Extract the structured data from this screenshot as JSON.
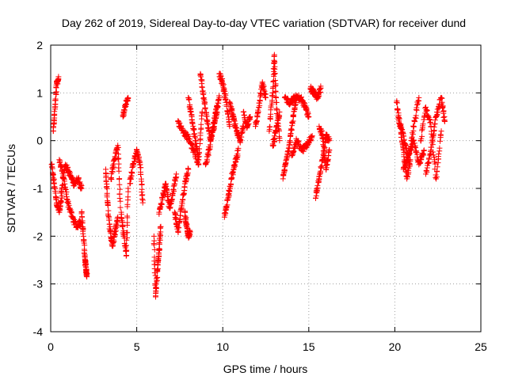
{
  "chart_data": {
    "type": "scatter",
    "title": "Day 262 of 2019, Sidereal Day-to-day VTEC variation (SDTVAR) for receiver dund",
    "xlabel": "GPS time / hours",
    "ylabel": "SDTVAR / TECUs",
    "xlim": [
      0,
      25
    ],
    "ylim": [
      -4,
      2
    ],
    "xticks": [
      0,
      5,
      10,
      15,
      20,
      25
    ],
    "yticks": [
      -4,
      -3,
      -2,
      -1,
      0,
      1,
      2
    ],
    "grid": true,
    "marker": "+",
    "color": "#ff0000",
    "series": [
      {
        "name": "SDTVAR",
        "segments": [
          {
            "x": [
              0.05,
              0.2,
              0.35,
              0.5,
              0.65
            ],
            "y": [
              -0.5,
              -0.9,
              -1.3,
              -1.5,
              -1.2
            ]
          },
          {
            "x": [
              0.15,
              0.25,
              0.35,
              0.45
            ],
            "y": [
              0.2,
              0.7,
              1.2,
              1.3
            ]
          },
          {
            "x": [
              0.5,
              0.75,
              1.0,
              1.25,
              1.5,
              1.75
            ],
            "y": [
              -0.4,
              -0.8,
              -1.3,
              -1.6,
              -1.8,
              -1.7
            ]
          },
          {
            "x": [
              0.6,
              0.85,
              1.1,
              1.35,
              1.6,
              1.8
            ],
            "y": [
              -1.1,
              -0.5,
              -0.7,
              -0.9,
              -0.8,
              -1.0
            ]
          },
          {
            "x": [
              1.8,
              1.9,
              2.0,
              2.05,
              2.1
            ],
            "y": [
              -1.5,
              -2.0,
              -2.5,
              -2.7,
              -2.85
            ]
          },
          {
            "x": [
              3.2,
              3.3,
              3.45,
              3.6,
              3.75,
              3.9
            ],
            "y": [
              -0.6,
              -1.3,
              -1.9,
              -2.2,
              -1.9,
              -1.6
            ]
          },
          {
            "x": [
              3.5,
              3.7,
              3.9,
              4.05
            ],
            "y": [
              -0.8,
              -0.4,
              -0.1,
              -1.4
            ]
          },
          {
            "x": [
              4.1,
              4.25,
              4.4,
              4.5
            ],
            "y": [
              -1.5,
              -2.0,
              -2.4,
              -1.0
            ]
          },
          {
            "x": [
              4.2,
              4.35,
              4.5
            ],
            "y": [
              0.5,
              0.75,
              0.9
            ]
          },
          {
            "x": [
              4.6,
              4.8,
              5.0,
              5.2,
              5.35
            ],
            "y": [
              -0.9,
              -0.5,
              -0.2,
              -0.5,
              -1.3
            ]
          },
          {
            "x": [
              6.0,
              6.1,
              6.2,
              6.3,
              6.4
            ],
            "y": [
              -2.0,
              -3.25,
              -2.7,
              -2.3,
              -1.8
            ]
          },
          {
            "x": [
              6.3,
              6.5,
              6.7,
              6.9,
              7.1,
              7.3
            ],
            "y": [
              -1.5,
              -1.2,
              -0.9,
              -1.4,
              -1.1,
              -0.7
            ]
          },
          {
            "x": [
              7.2,
              7.4,
              7.6,
              7.8,
              8.0
            ],
            "y": [
              -1.5,
              -1.9,
              -1.4,
              -0.9,
              -0.6
            ]
          },
          {
            "x": [
              7.4,
              7.7,
              8.0,
              8.3,
              8.6
            ],
            "y": [
              0.4,
              0.2,
              0.05,
              -0.2,
              -0.5
            ]
          },
          {
            "x": [
              7.8,
              7.9,
              8.0,
              8.1
            ],
            "y": [
              -1.5,
              -1.8,
              -2.0,
              -1.9
            ]
          },
          {
            "x": [
              8.0,
              8.2,
              8.4,
              8.6,
              8.8
            ],
            "y": [
              0.9,
              0.5,
              0.0,
              -0.4,
              0.6
            ]
          },
          {
            "x": [
              8.7,
              8.9,
              9.1,
              9.3,
              9.5,
              9.7
            ],
            "y": [
              1.4,
              0.9,
              0.4,
              0.0,
              0.3,
              0.7
            ]
          },
          {
            "x": [
              9.0,
              9.2,
              9.4,
              9.6,
              9.8
            ],
            "y": [
              -0.5,
              -0.2,
              0.2,
              0.6,
              0.9
            ]
          },
          {
            "x": [
              9.8,
              10.0,
              10.2,
              10.4
            ],
            "y": [
              1.4,
              1.2,
              0.8,
              0.3
            ]
          },
          {
            "x": [
              10.1,
              10.3,
              10.5,
              10.7,
              10.9
            ],
            "y": [
              -1.6,
              -1.2,
              -0.8,
              -0.5,
              -0.2
            ]
          },
          {
            "x": [
              10.4,
              10.6,
              10.8,
              11.0,
              11.2
            ],
            "y": [
              0.8,
              0.5,
              0.2,
              0.0,
              0.3
            ]
          },
          {
            "x": [
              11.2,
              11.4,
              11.6
            ],
            "y": [
              0.6,
              0.3,
              0.5
            ]
          },
          {
            "x": [
              11.9,
              12.1,
              12.3,
              12.5
            ],
            "y": [
              0.3,
              0.7,
              1.2,
              0.9
            ]
          },
          {
            "x": [
              12.7,
              12.9,
              13.0,
              13.1,
              13.3
            ],
            "y": [
              0.2,
              1.0,
              1.8,
              0.8,
              0.0
            ]
          },
          {
            "x": [
              12.9,
              13.1,
              13.3
            ],
            "y": [
              -0.1,
              0.2,
              0.6
            ]
          },
          {
            "x": [
              13.5,
              13.7,
              13.9,
              14.1,
              14.3
            ],
            "y": [
              -0.8,
              -0.4,
              0.0,
              0.5,
              0.9
            ]
          },
          {
            "x": [
              13.6,
              13.9,
              14.2,
              14.5,
              14.8,
              15.0
            ],
            "y": [
              0.9,
              0.8,
              0.9,
              0.9,
              0.7,
              0.5
            ]
          },
          {
            "x": [
              14.0,
              14.3,
              14.6,
              14.9,
              15.2
            ],
            "y": [
              -0.3,
              0.0,
              -0.2,
              -0.1,
              0.1
            ]
          },
          {
            "x": [
              15.1,
              15.3,
              15.5,
              15.7
            ],
            "y": [
              1.1,
              1.0,
              0.9,
              1.1
            ]
          },
          {
            "x": [
              15.4,
              15.6,
              15.8,
              16.0,
              16.2
            ],
            "y": [
              -1.2,
              -0.8,
              -0.4,
              0.1,
              0.0
            ]
          },
          {
            "x": [
              15.6,
              15.8,
              16.0,
              16.2
            ],
            "y": [
              0.3,
              0.1,
              -0.6,
              -0.2
            ]
          },
          {
            "x": [
              20.1,
              20.3,
              20.5,
              20.7,
              20.9
            ],
            "y": [
              0.8,
              0.3,
              -0.2,
              -0.8,
              -0.4
            ]
          },
          {
            "x": [
              20.2,
              20.5,
              20.8,
              21.1,
              21.4
            ],
            "y": [
              0.5,
              0.1,
              -0.4,
              0.3,
              0.9
            ]
          },
          {
            "x": [
              20.5,
              20.8,
              21.1,
              21.4,
              21.7
            ],
            "y": [
              -0.6,
              -0.3,
              0.0,
              -0.5,
              -0.2
            ]
          },
          {
            "x": [
              21.5,
              21.8,
              22.1,
              22.4,
              22.7
            ],
            "y": [
              0.0,
              0.7,
              0.3,
              -0.8,
              0.2
            ]
          },
          {
            "x": [
              21.8,
              22.1,
              22.4,
              22.7,
              22.9
            ],
            "y": [
              -0.7,
              -0.2,
              0.5,
              0.9,
              0.4
            ]
          }
        ]
      }
    ]
  }
}
